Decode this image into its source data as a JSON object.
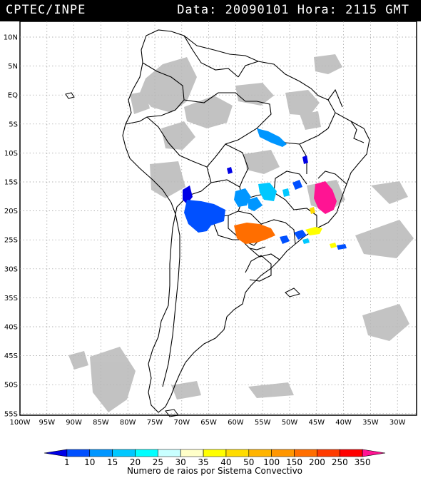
{
  "header": {
    "source": "CPTEC/INPE",
    "datetime": "Data: 20090101 Hora: 2115 GMT"
  },
  "map": {
    "lat_labels": [
      "10N",
      "5N",
      "EQ",
      "5S",
      "10S",
      "15S",
      "20S",
      "25S",
      "30S",
      "35S",
      "40S",
      "45S",
      "50S",
      "55S"
    ],
    "lon_labels": [
      "100W",
      "95W",
      "90W",
      "85W",
      "80W",
      "75W",
      "70W",
      "65W",
      "60W",
      "55W",
      "50W",
      "45W",
      "40W",
      "35W",
      "30W"
    ]
  },
  "colorbar": {
    "title": "Numero de raios por Sistema Convectivo",
    "labels": [
      "1",
      "10",
      "15",
      "20",
      "25",
      "30",
      "35",
      "40",
      "50",
      "100",
      "150",
      "200",
      "250",
      "350"
    ],
    "colors": [
      "#0000e6",
      "#0050ff",
      "#0096ff",
      "#00c8ff",
      "#00ffff",
      "#c8ffff",
      "#ffffc8",
      "#ffff00",
      "#ffdc00",
      "#ffb400",
      "#ff9600",
      "#ff6e00",
      "#ff3c00",
      "#ff0000",
      "#ff1493"
    ]
  }
}
